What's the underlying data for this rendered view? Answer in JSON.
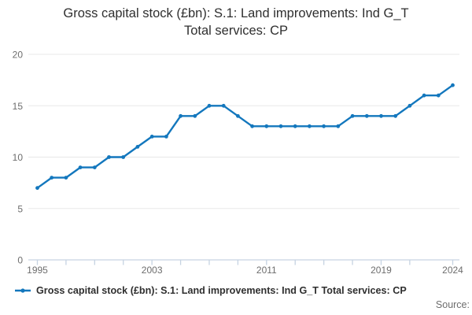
{
  "header": {
    "title_line1": "Gross capital stock (£bn): S.1: Land improvements: Ind G_T",
    "title_line2": "Total services: CP"
  },
  "legend": {
    "label": "Gross capital stock (£bn): S.1: Land improvements: Ind G_T Total services: CP"
  },
  "footer": {
    "source_label": "Source:"
  },
  "colors": {
    "accent_blue": "#1377bd",
    "gridline": "#e8e8e8",
    "axis_line": "#c6d3e2",
    "axis_text": "#6d6d6d",
    "title_text": "#2f2f2f"
  },
  "chart_data": {
    "type": "line",
    "title": "Gross capital stock (£bn): S.1: Land improvements: Ind G_T Total services: CP",
    "xlabel": "",
    "ylabel": "",
    "x": [
      1995,
      1996,
      1997,
      1998,
      1999,
      2000,
      2001,
      2002,
      2003,
      2004,
      2005,
      2006,
      2007,
      2008,
      2009,
      2010,
      2011,
      2012,
      2013,
      2014,
      2015,
      2016,
      2017,
      2018,
      2019,
      2020,
      2021,
      2022,
      2023,
      2024
    ],
    "series": [
      {
        "name": "Gross capital stock (£bn): S.1: Land improvements: Ind G_T Total services: CP",
        "values": [
          7,
          8,
          8,
          9,
          9,
          10,
          10,
          11,
          12,
          12,
          14,
          14,
          15,
          15,
          14,
          13,
          13,
          13,
          13,
          13,
          13,
          13,
          14,
          14,
          14,
          14,
          15,
          16,
          16,
          17
        ]
      }
    ],
    "ylim": [
      0,
      20
    ],
    "yticks": [
      0,
      5,
      10,
      15,
      20
    ],
    "xtick_years": [
      1995,
      1997,
      1999,
      2001,
      2003,
      2005,
      2007,
      2009,
      2011,
      2013,
      2015,
      2017,
      2019,
      2021,
      2024
    ],
    "xtick_labels": [
      "1995",
      "2003",
      "2011",
      "2019",
      "2024"
    ],
    "grid": "horizontal",
    "legend_position": "bottom-left",
    "marker": "circle",
    "line_color": "#1377bd",
    "grid_color": "#e8e8e8",
    "axis_color": "#c6d3e2"
  }
}
